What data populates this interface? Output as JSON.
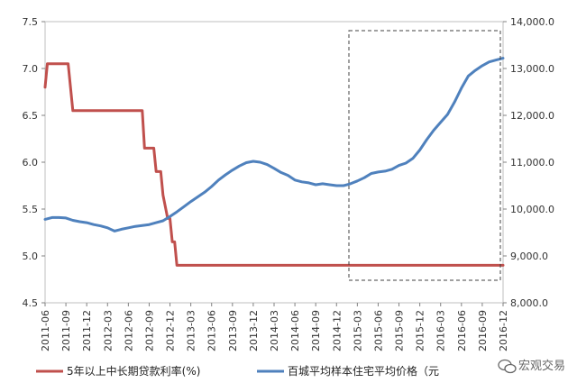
{
  "chart_data": {
    "type": "line",
    "title": "",
    "x": [
      "2011-06",
      "2011-09",
      "2011-12",
      "2012-03",
      "2012-06",
      "2012-09",
      "2012-12",
      "2013-03",
      "2013-06",
      "2013-09",
      "2013-12",
      "2014-03",
      "2014-06",
      "2014-09",
      "2014-12",
      "2015-03",
      "2015-06",
      "2015-09",
      "2015-12",
      "2016-03",
      "2016-06",
      "2016-09",
      "2016-12"
    ],
    "y_left": {
      "ylim": [
        4.5,
        7.5
      ],
      "ticks": [
        "4.5",
        "5.0",
        "5.5",
        "6.0",
        "6.5",
        "7.0",
        "7.5"
      ]
    },
    "y_right": {
      "ylim": [
        8000,
        14000
      ],
      "ticks": [
        "8,000.0",
        "9,000.0",
        "10,000.0",
        "11,000.0",
        "12,000.0",
        "13,000.0",
        "14,000.0"
      ]
    },
    "series": [
      {
        "name": "5年以上中长期贷款利率(%)",
        "axis": "left",
        "color": "#c0504d",
        "points": [
          [
            0,
            6.8
          ],
          [
            0.33,
            7.05
          ],
          [
            1,
            7.05
          ],
          [
            2,
            7.05
          ],
          [
            3,
            7.05
          ],
          [
            3.33,
            7.05
          ],
          [
            4,
            6.55
          ],
          [
            5,
            6.55
          ],
          [
            6,
            6.55
          ],
          [
            7,
            6.55
          ],
          [
            8,
            6.55
          ],
          [
            9,
            6.55
          ],
          [
            10,
            6.55
          ],
          [
            11,
            6.55
          ],
          [
            12,
            6.55
          ],
          [
            13,
            6.55
          ],
          [
            14,
            6.55
          ],
          [
            14.33,
            6.15
          ],
          [
            15,
            6.15
          ],
          [
            15.67,
            6.15
          ],
          [
            16,
            5.9
          ],
          [
            16.67,
            5.9
          ],
          [
            17,
            5.65
          ],
          [
            17.67,
            5.4
          ],
          [
            18,
            5.4
          ],
          [
            18.33,
            5.15
          ],
          [
            18.67,
            5.15
          ],
          [
            19,
            4.9
          ],
          [
            20,
            4.9
          ],
          [
            21,
            4.9
          ],
          [
            22,
            4.9
          ],
          [
            23,
            4.9
          ],
          [
            24,
            4.9
          ],
          [
            25,
            4.9
          ],
          [
            26,
            4.9
          ],
          [
            27,
            4.9
          ],
          [
            28,
            4.9
          ],
          [
            29,
            4.9
          ],
          [
            30,
            4.9
          ],
          [
            31,
            4.9
          ],
          [
            32,
            4.9
          ],
          [
            33,
            4.9
          ],
          [
            34,
            4.9
          ],
          [
            35,
            4.9
          ],
          [
            36,
            4.9
          ],
          [
            37,
            4.9
          ],
          [
            38,
            4.9
          ],
          [
            39,
            4.9
          ],
          [
            40,
            4.9
          ],
          [
            41,
            4.9
          ],
          [
            42,
            4.9
          ],
          [
            43,
            4.9
          ],
          [
            44,
            4.9
          ],
          [
            45,
            4.9
          ],
          [
            46,
            4.9
          ],
          [
            47,
            4.9
          ],
          [
            48,
            4.9
          ],
          [
            49,
            4.9
          ],
          [
            50,
            4.9
          ],
          [
            51,
            4.9
          ],
          [
            52,
            4.9
          ],
          [
            53,
            4.9
          ],
          [
            54,
            4.9
          ],
          [
            55,
            4.9
          ],
          [
            56,
            4.9
          ],
          [
            57,
            4.9
          ],
          [
            58,
            4.9
          ],
          [
            59,
            4.9
          ],
          [
            60,
            4.9
          ],
          [
            61,
            4.9
          ],
          [
            62,
            4.9
          ],
          [
            63,
            4.9
          ],
          [
            64,
            4.9
          ],
          [
            65,
            4.9
          ],
          [
            66,
            4.9
          ]
        ]
      },
      {
        "name": "百城平均样本住宅平均价格（元",
        "axis": "right",
        "color": "#4f81bd",
        "points": [
          [
            0,
            9780
          ],
          [
            1,
            9820
          ],
          [
            2,
            9820
          ],
          [
            3,
            9810
          ],
          [
            4,
            9760
          ],
          [
            5,
            9730
          ],
          [
            6,
            9710
          ],
          [
            7,
            9670
          ],
          [
            8,
            9640
          ],
          [
            9,
            9600
          ],
          [
            10,
            9530
          ],
          [
            11,
            9570
          ],
          [
            12,
            9600
          ],
          [
            13,
            9630
          ],
          [
            14,
            9650
          ],
          [
            15,
            9670
          ],
          [
            16,
            9710
          ],
          [
            17,
            9750
          ],
          [
            18,
            9840
          ],
          [
            19,
            9940
          ],
          [
            20,
            10050
          ],
          [
            21,
            10160
          ],
          [
            22,
            10260
          ],
          [
            23,
            10360
          ],
          [
            24,
            10480
          ],
          [
            25,
            10620
          ],
          [
            26,
            10730
          ],
          [
            27,
            10830
          ],
          [
            28,
            10920
          ],
          [
            29,
            10990
          ],
          [
            30,
            11020
          ],
          [
            31,
            11000
          ],
          [
            32,
            10950
          ],
          [
            33,
            10870
          ],
          [
            34,
            10780
          ],
          [
            35,
            10720
          ],
          [
            36,
            10620
          ],
          [
            37,
            10580
          ],
          [
            38,
            10560
          ],
          [
            39,
            10520
          ],
          [
            40,
            10540
          ],
          [
            41,
            10520
          ],
          [
            42,
            10500
          ],
          [
            43,
            10500
          ],
          [
            44,
            10540
          ],
          [
            45,
            10600
          ],
          [
            46,
            10670
          ],
          [
            47,
            10760
          ],
          [
            48,
            10790
          ],
          [
            49,
            10810
          ],
          [
            50,
            10850
          ],
          [
            51,
            10930
          ],
          [
            52,
            10980
          ],
          [
            53,
            11080
          ],
          [
            54,
            11260
          ],
          [
            55,
            11480
          ],
          [
            56,
            11680
          ],
          [
            57,
            11850
          ],
          [
            58,
            12020
          ],
          [
            59,
            12280
          ],
          [
            60,
            12580
          ],
          [
            61,
            12840
          ],
          [
            62,
            12960
          ],
          [
            63,
            13060
          ],
          [
            64,
            13140
          ],
          [
            65,
            13180
          ],
          [
            66,
            13220
          ]
        ]
      }
    ],
    "legend": "bottom",
    "grid": false,
    "annotation": "dashed rectangle highlighting 2015-03 to 2016-12"
  },
  "watermark": {
    "text": "宏观交易",
    "icon": "wechat-icon"
  }
}
